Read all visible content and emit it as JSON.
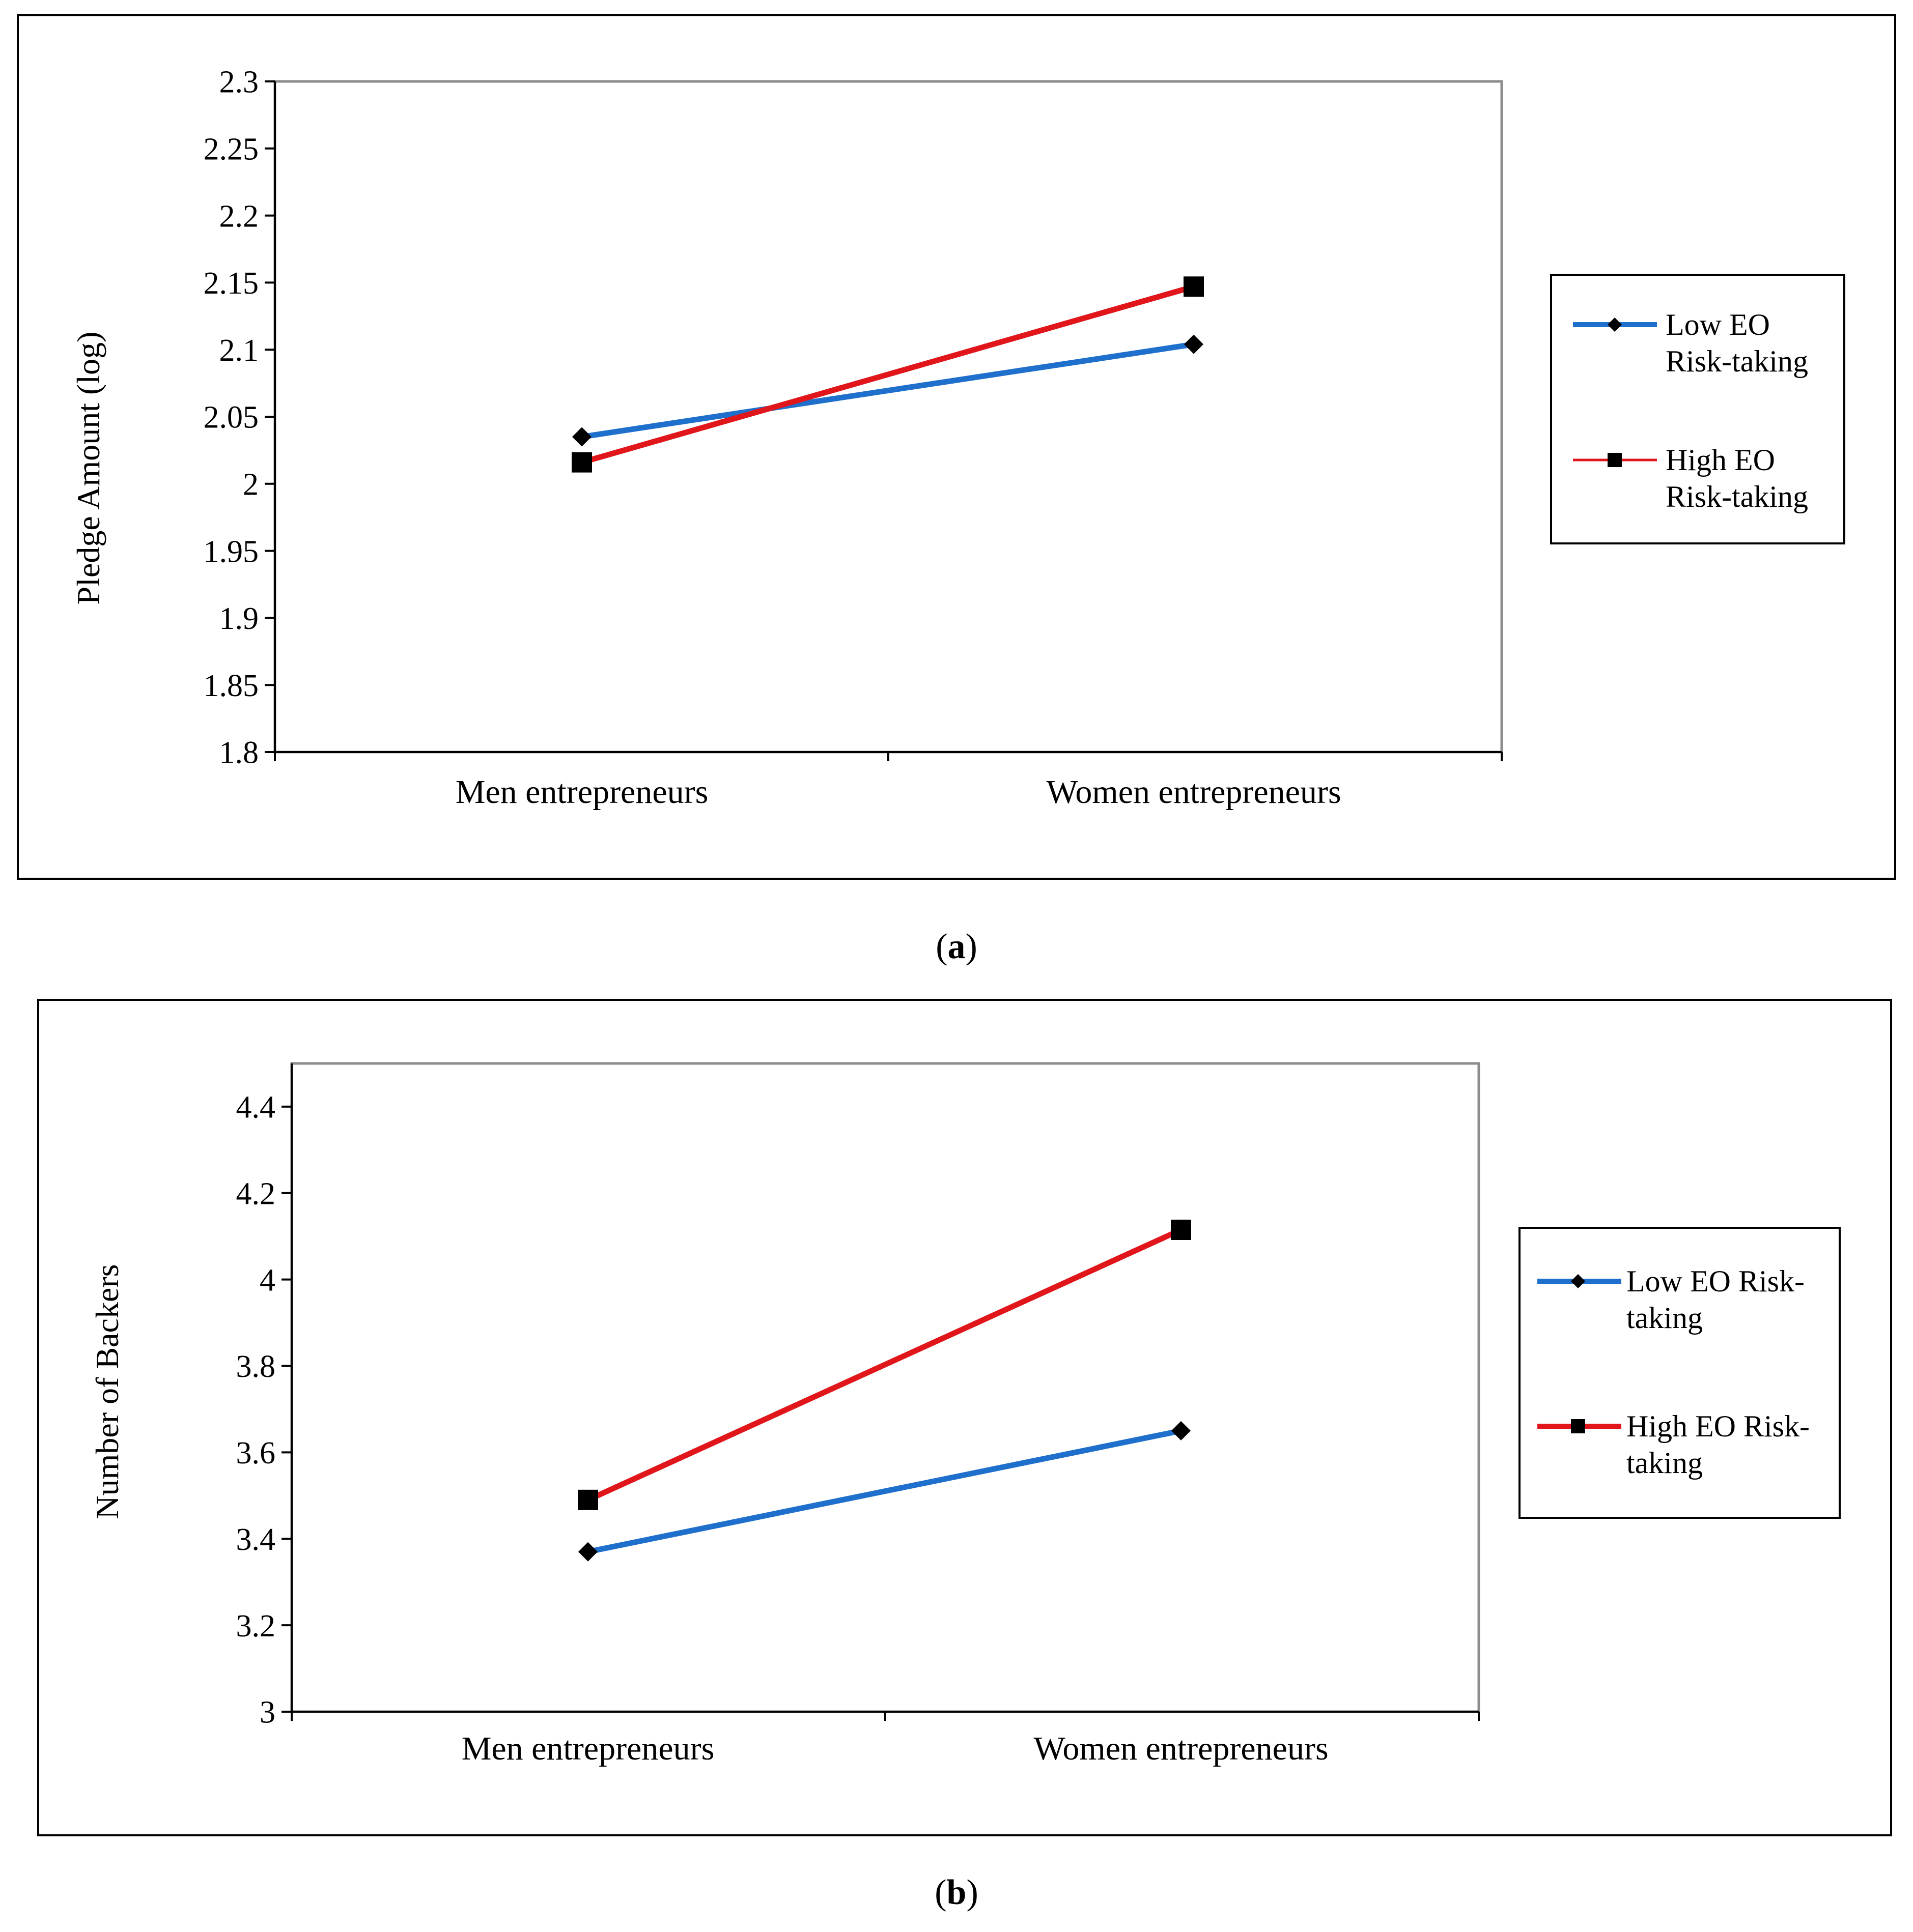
{
  "chart_data": [
    {
      "type": "line",
      "categories": [
        "Men entrepreneurs",
        "Women entrepreneurs"
      ],
      "series": [
        {
          "name": "Low EO Risk-taking",
          "legend_lines": [
            "Low EO",
            "Risk-taking"
          ],
          "values": [
            2.035,
            2.104
          ],
          "color": "#1f6fcc",
          "marker": "diamond"
        },
        {
          "name": "High EO Risk-taking",
          "legend_lines": [
            "High EO",
            "Risk-taking"
          ],
          "values": [
            2.016,
            2.147
          ],
          "color": "#e0161b",
          "marker": "square"
        }
      ],
      "ylabel": "Pledge Amount (log)",
      "ylim": [
        1.8,
        2.3
      ],
      "yticks": [
        "1.8",
        "1.85",
        "1.9",
        "1.95",
        "2",
        "2.05",
        "2.1",
        "2.15",
        "2.2",
        "2.25",
        "2.3"
      ],
      "caption": {
        "open": "(",
        "letter": "a",
        "close": ")"
      }
    },
    {
      "type": "line",
      "categories": [
        "Men entrepreneurs",
        "Women entrepreneurs"
      ],
      "series": [
        {
          "name": "Low EO Risk-taking",
          "legend_lines": [
            "Low EO Risk-",
            "taking"
          ],
          "values": [
            3.37,
            3.65
          ],
          "color": "#1f6fcc",
          "marker": "diamond"
        },
        {
          "name": "High EO Risk-taking",
          "legend_lines": [
            "High EO Risk-",
            "taking"
          ],
          "values": [
            3.49,
            4.115
          ],
          "color": "#e0161b",
          "marker": "square"
        }
      ],
      "ylabel": "Number of Backers",
      "ylim": [
        3.0,
        4.5
      ],
      "yticks": [
        "3",
        "3.2",
        "3.4",
        "3.6",
        "3.8",
        "4",
        "4.2",
        "4.4"
      ],
      "caption": {
        "open": "(",
        "letter": "b",
        "close": ")"
      }
    }
  ]
}
